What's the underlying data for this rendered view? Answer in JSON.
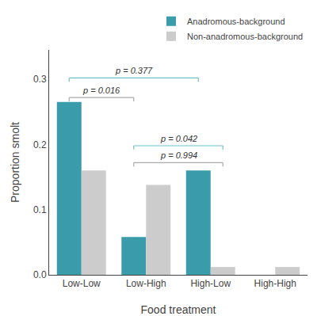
{
  "chart_data": {
    "type": "bar",
    "xlabel": "Food treatment",
    "ylabel": "Proportion smolt",
    "categories": [
      "Low-Low",
      "Low-High",
      "High-Low",
      "High-High"
    ],
    "series": [
      {
        "name": "Anadromous-background",
        "color": "#3a9baa",
        "values": [
          0.265,
          0.058,
          0.16,
          0.0
        ]
      },
      {
        "name": "Non-anadromous-background",
        "color": "#cccccc",
        "values": [
          0.16,
          0.138,
          0.012,
          0.012
        ]
      }
    ],
    "ylim": [
      0,
      0.345
    ],
    "yticks": [
      {
        "value": 0.0,
        "label": "0.0"
      },
      0.1,
      0.2,
      0.3
    ],
    "grid": false,
    "legend": "upper right",
    "annotations": [
      {
        "text": "p = 0.016",
        "from": {
          "category": "Low-Low",
          "series": "Anadromous-background"
        },
        "to": {
          "category": "Low-High",
          "series": "Anadromous-background"
        },
        "y": 0.272,
        "color": "#aaaaaa"
      },
      {
        "text": "p = 0.377",
        "from": {
          "category": "Low-Low",
          "series": "Anadromous-background"
        },
        "to": {
          "category": "High-Low",
          "series": "Anadromous-background"
        },
        "y": 0.302,
        "color": "#70c0cc"
      },
      {
        "text": "p = 0.994",
        "from": {
          "category": "Low-High",
          "series": "Anadromous-background"
        },
        "to": {
          "category": "High-Low",
          "series": "Non-anadromous-background"
        },
        "y": 0.172,
        "color": "#aaaaaa"
      },
      {
        "text": "p = 0.042",
        "from": {
          "category": "Low-High",
          "series": "Anadromous-background"
        },
        "to": {
          "category": "High-Low",
          "series": "Non-anadromous-background"
        },
        "y": 0.198,
        "color": "#70c0cc"
      }
    ]
  }
}
